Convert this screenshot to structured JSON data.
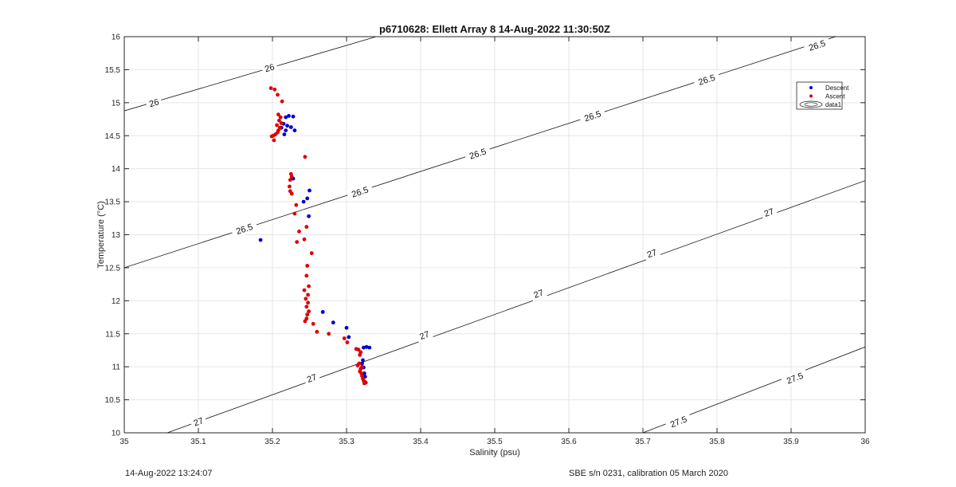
{
  "chart_data": {
    "type": "scatter",
    "title": "p6710628: Ellett Array 8 14-Aug-2022 11:30:50Z",
    "xlabel": "Salinity (psu)",
    "ylabel": "Temperature (°C)",
    "xlim": [
      35,
      36
    ],
    "ylim": [
      10,
      16
    ],
    "xticks": [
      35,
      35.1,
      35.2,
      35.3,
      35.4,
      35.5,
      35.6,
      35.7,
      35.8,
      35.9,
      36
    ],
    "xtick_labels": [
      "35",
      "35.1",
      "35.2",
      "35.3",
      "35.4",
      "35.5",
      "35.6",
      "35.7",
      "35.8",
      "35.9",
      "36"
    ],
    "yticks": [
      10,
      10.5,
      11,
      11.5,
      12,
      12.5,
      13,
      13.5,
      14,
      14.5,
      15,
      15.5,
      16
    ],
    "ytick_labels": [
      "10",
      "10.5",
      "11",
      "11.5",
      "12",
      "12.5",
      "13",
      "13.5",
      "14",
      "14.5",
      "15",
      "15.5",
      "16"
    ],
    "grid": true,
    "legend_position": "top-right",
    "legend": [
      "Descent",
      "Ascent",
      "data1"
    ],
    "series": [
      {
        "name": "Descent",
        "color": "#0000cc",
        "points": [
          [
            35.218,
            14.78
          ],
          [
            35.222,
            14.8
          ],
          [
            35.228,
            14.79
          ],
          [
            35.215,
            14.68
          ],
          [
            35.22,
            14.65
          ],
          [
            35.218,
            14.58
          ],
          [
            35.23,
            14.58
          ],
          [
            35.225,
            14.63
          ],
          [
            35.212,
            14.62
          ],
          [
            35.216,
            14.52
          ],
          [
            35.228,
            13.85
          ],
          [
            35.25,
            13.67
          ],
          [
            35.247,
            13.55
          ],
          [
            35.242,
            13.5
          ],
          [
            35.249,
            13.28
          ],
          [
            35.184,
            12.92
          ],
          [
            35.268,
            11.83
          ],
          [
            35.282,
            11.67
          ],
          [
            35.3,
            11.59
          ],
          [
            35.303,
            11.45
          ],
          [
            35.327,
            11.3
          ],
          [
            35.331,
            11.29
          ],
          [
            35.323,
            11.29
          ],
          [
            35.322,
            11.1
          ],
          [
            35.321,
            11.05
          ],
          [
            35.323,
            10.99
          ],
          [
            35.324,
            10.9
          ],
          [
            35.325,
            10.85
          ]
        ]
      },
      {
        "name": "Ascent",
        "color": "#dd0000",
        "points": [
          [
            35.198,
            15.22
          ],
          [
            35.203,
            15.2
          ],
          [
            35.207,
            15.12
          ],
          [
            35.213,
            15.02
          ],
          [
            35.208,
            14.82
          ],
          [
            35.211,
            14.78
          ],
          [
            35.209,
            14.73
          ],
          [
            35.212,
            14.69
          ],
          [
            35.206,
            14.66
          ],
          [
            35.21,
            14.62
          ],
          [
            35.208,
            14.58
          ],
          [
            35.207,
            14.55
          ],
          [
            35.204,
            14.52
          ],
          [
            35.201,
            14.5
          ],
          [
            35.199,
            14.49
          ],
          [
            35.202,
            14.43
          ],
          [
            35.244,
            14.18
          ],
          [
            35.225,
            13.92
          ],
          [
            35.226,
            13.88
          ],
          [
            35.224,
            13.83
          ],
          [
            35.223,
            13.73
          ],
          [
            35.224,
            13.66
          ],
          [
            35.226,
            13.62
          ],
          [
            35.232,
            13.45
          ],
          [
            35.23,
            13.32
          ],
          [
            35.246,
            13.12
          ],
          [
            35.236,
            13.05
          ],
          [
            35.243,
            12.93
          ],
          [
            35.233,
            12.89
          ],
          [
            35.253,
            12.72
          ],
          [
            35.247,
            12.53
          ],
          [
            35.246,
            12.38
          ],
          [
            35.249,
            12.22
          ],
          [
            35.243,
            12.16
          ],
          [
            35.248,
            12.09
          ],
          [
            35.245,
            12.03
          ],
          [
            35.248,
            11.97
          ],
          [
            35.246,
            11.91
          ],
          [
            35.249,
            11.84
          ],
          [
            35.247,
            11.79
          ],
          [
            35.246,
            11.73
          ],
          [
            35.244,
            11.69
          ],
          [
            35.255,
            11.65
          ],
          [
            35.26,
            11.53
          ],
          [
            35.276,
            11.5
          ],
          [
            35.297,
            11.43
          ],
          [
            35.301,
            11.37
          ],
          [
            35.313,
            11.27
          ],
          [
            35.316,
            11.26
          ],
          [
            35.319,
            11.22
          ],
          [
            35.318,
            11.18
          ],
          [
            35.317,
            11.05
          ],
          [
            35.315,
            11.02
          ],
          [
            35.321,
            11.0
          ],
          [
            35.319,
            10.97
          ],
          [
            35.318,
            10.93
          ],
          [
            35.32,
            10.9
          ],
          [
            35.321,
            10.86
          ],
          [
            35.322,
            10.82
          ],
          [
            35.323,
            10.79
          ],
          [
            35.325,
            10.77
          ],
          [
            35.326,
            10.76
          ],
          [
            35.324,
            10.75
          ]
        ]
      }
    ],
    "contours": [
      {
        "level": "26",
        "segments": [
          [
            [
              35.0,
              14.876
            ],
            [
              35.34,
              16.0
            ]
          ]
        ],
        "labels": [
          {
            "text": "26",
            "at": [
              35.04,
              15.0
            ]
          },
          {
            "text": "26",
            "at": [
              35.196,
              15.53
            ]
          }
        ]
      },
      {
        "level": "26.5",
        "segments": [
          [
            [
              35.0,
              12.5
            ],
            [
              35.96,
              16.0
            ]
          ]
        ],
        "labels": [
          {
            "text": "26.5",
            "at": [
              35.162,
              13.09
            ]
          },
          {
            "text": "26.5",
            "at": [
              35.318,
              13.65
            ]
          },
          {
            "text": "26.5",
            "at": [
              35.477,
              14.23
            ]
          },
          {
            "text": "26.5",
            "at": [
              35.632,
              14.8
            ]
          },
          {
            "text": "26.5",
            "at": [
              35.786,
              15.35
            ]
          },
          {
            "text": "26.5",
            "at": [
              35.935,
              15.87
            ]
          }
        ]
      },
      {
        "level": "27",
        "segments": [
          [
            [
              35.058,
              10.0
            ],
            [
              36.0,
              13.82
            ]
          ]
        ],
        "labels": [
          {
            "text": "27",
            "at": [
              35.1,
              10.17
            ]
          },
          {
            "text": "27",
            "at": [
              35.253,
              10.83
            ]
          },
          {
            "text": "27",
            "at": [
              35.405,
              11.48
            ]
          },
          {
            "text": "27",
            "at": [
              35.559,
              12.11
            ]
          },
          {
            "text": "27",
            "at": [
              35.712,
              12.72
            ]
          },
          {
            "text": "27",
            "at": [
              35.87,
              13.34
            ]
          }
        ]
      },
      {
        "level": "27.5",
        "segments": [
          [
            [
              35.7,
              10.0
            ],
            [
              36.0,
              11.3
            ]
          ]
        ],
        "labels": [
          {
            "text": "27.5",
            "at": [
              35.748,
              10.17
            ]
          },
          {
            "text": "27.5",
            "at": [
              35.905,
              10.83
            ]
          }
        ]
      }
    ]
  },
  "footer": {
    "timestamp": "14-Aug-2022 13:24:07",
    "calibration": "SBE s/n 0231, calibration 05 March 2020"
  }
}
